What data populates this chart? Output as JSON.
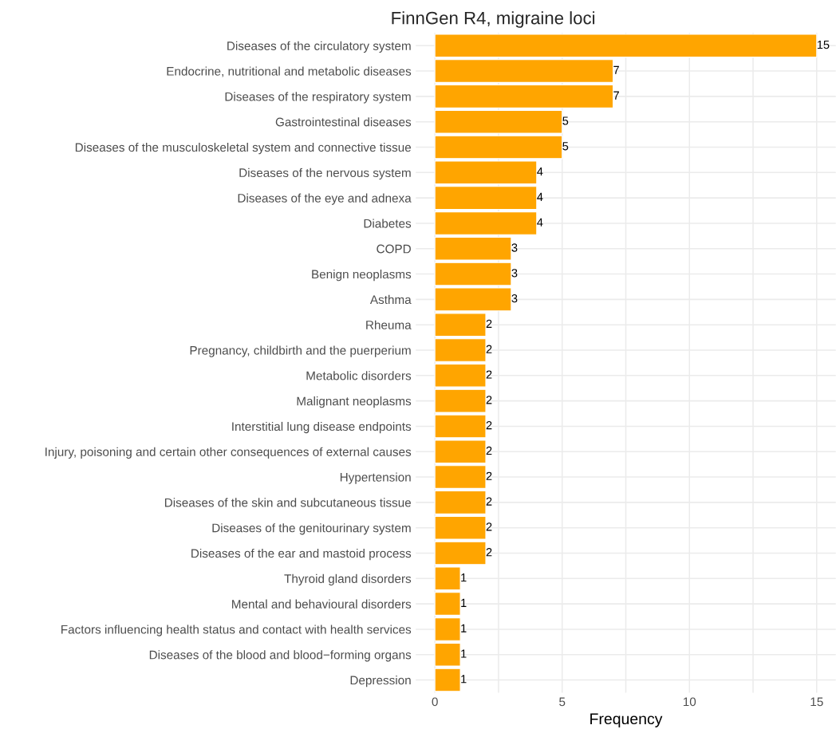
{
  "chart_data": {
    "type": "bar",
    "orientation": "horizontal",
    "title": "FinnGen R4, migraine loci",
    "xlabel": "Frequency",
    "categories": [
      "Diseases of the circulatory system",
      "Endocrine, nutritional and metabolic diseases",
      "Diseases of the respiratory system",
      "Gastrointestinal diseases",
      "Diseases of the musculoskeletal system and connective tissue",
      "Diseases of the nervous system",
      "Diseases of the eye and adnexa",
      "Diabetes",
      "COPD",
      "Benign neoplasms",
      "Asthma",
      "Rheuma",
      "Pregnancy, childbirth and the puerperium",
      "Metabolic disorders",
      "Malignant neoplasms",
      "Interstitial lung disease endpoints",
      "Injury, poisoning and certain other consequences of external causes",
      "Hypertension",
      "Diseases of the skin and subcutaneous tissue",
      "Diseases of the genitourinary system",
      "Diseases of the ear and mastoid process",
      "Thyroid gland disorders",
      "Mental and behavioural disorders",
      "Factors influencing health status and contact with health services",
      "Diseases of the blood and blood−forming organs",
      "Depression"
    ],
    "values": [
      15,
      7,
      7,
      5,
      5,
      4,
      4,
      4,
      3,
      3,
      3,
      2,
      2,
      2,
      2,
      2,
      2,
      2,
      2,
      2,
      2,
      1,
      1,
      1,
      1,
      1
    ],
    "color": "#ffa500",
    "data_labels": true,
    "xlim": [
      -0.75,
      15.75
    ],
    "xticks": [
      0,
      {
        "value": 2.5,
        "label": null
      },
      5,
      {
        "value": 7.5,
        "label": null
      },
      10,
      {
        "value": 12.5,
        "label": null
      },
      15
    ],
    "grid": true,
    "legend": false
  }
}
